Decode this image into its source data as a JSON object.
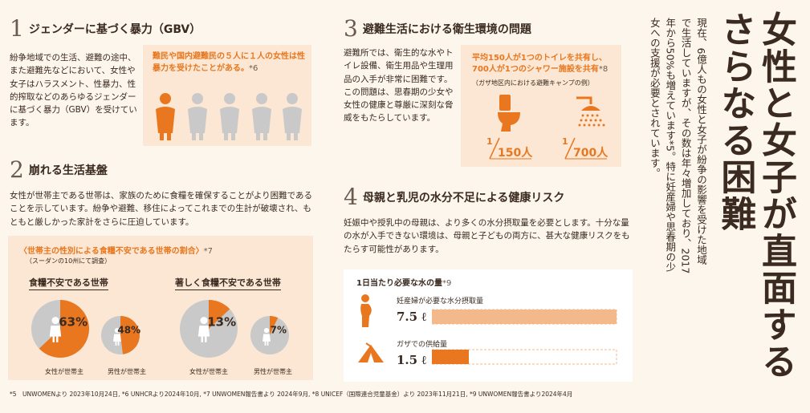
{
  "title_block": {
    "title": "女性と女子が直面するさらなる困難",
    "intro": "現在、6億人もの女性と女子が紛争の影響を受けた地域で生活していますが、その数は年々増加しており、2017年から50%も増えています*5。特に妊産婦や思春期の少女への支援が必要とされています。"
  },
  "s1": {
    "num": "1",
    "heading": "ジェンダーに基づく暴力（GBV）",
    "body": "紛争地域での生活、避難の途中、また避難先などにおいて、女性や女子はハラスメント、性暴力、性的搾取などのあらゆるジェンダーに基づく暴力（GBV）を受けています。",
    "callout": "難民や国内避難民の５人に１人の女性は性暴力を受けたことがある。",
    "callout_ref": "*6"
  },
  "s2": {
    "num": "2",
    "heading": "崩れる生活基盤",
    "body": "女性が世帯主である世帯は、家族のために食糧を確保することがより困難であることを示しています。紛争や避難、移住によってこれまでの生計が破壊され、もともと厳しかった家計をさらに圧迫しています。",
    "chart_title": "〈世帯主の性別による食糧不安である世帯の割合〉",
    "chart_ref": "*7",
    "chart_note": "（スーダンの10州にて調査）",
    "group1": "食糧不安である世帯",
    "group2": "著しく食糧不安である世帯",
    "female_head": "女性が世帯主",
    "male_head": "男性が世帯主"
  },
  "s3": {
    "num": "3",
    "heading": "避難生活における衛生環境の問題",
    "body": "避難所では、衛生的な水やトイレ設備、衛生用品や生理用品の入手が非常に困難です。この問題は、思春期の少女や女性の健康と尊厳に深刻な脅威をもたらしています。",
    "stat": "平均150人が1つのトイレを共有し、700人が1つのシャワー施設を共有",
    "stat_ref": "*8",
    "stat_note": "（ガザ地区内における避難キャンプの例）",
    "toilet_one": "1",
    "toilet_ratio": "150人",
    "shower_one": "1",
    "shower_ratio": "700人"
  },
  "s4": {
    "num": "4",
    "heading": "母親と乳児の水分不足による健康リスク",
    "body": "妊娠中や授乳中の母親は、より多くの水分摂取量を必要とします。十分な量の水が入手できない環境は、母親と子どもの両方に、甚大な健康リスクをもたらす可能性があります。",
    "chart_title": "1日当たり必要な水の量",
    "chart_ref": "*9",
    "row1_label": "妊産婦が必要な水分摂取量",
    "row1_value": "7.5 ℓ",
    "row2_label": "ガザでの供給量",
    "row2_value": "1.5 ℓ"
  },
  "footnote": "*5　UNWOMENより 2023年10月24日, *6 UNHCRより2024年10月, *7 UNWOMEN報告書より 2024年9月, *8 UNICEF（国際連合児童基金）より 2023年11月21日, *9 UNWOMEN報告書より2024年4月",
  "chart_data": [
    {
      "type": "pie",
      "title": "食糧不安である世帯",
      "categories": [
        "女性が世帯主",
        "男性が世帯主"
      ],
      "values": [
        63,
        48
      ],
      "labels": [
        "63%",
        "48%"
      ]
    },
    {
      "type": "pie",
      "title": "著しく食糧不安である世帯",
      "categories": [
        "女性が世帯主",
        "男性が世帯主"
      ],
      "values": [
        13,
        7
      ],
      "labels": [
        "13%",
        "7%"
      ]
    },
    {
      "type": "bar",
      "title": "1日当たり必要な水の量",
      "categories": [
        "妊産婦が必要な水分摂取量",
        "ガザでの供給量"
      ],
      "values": [
        7.5,
        1.5
      ],
      "unit": "ℓ",
      "xlim": [
        0,
        7.5
      ]
    }
  ],
  "colors": {
    "accent": "#e8771f",
    "accent_light": "#f4b98a",
    "panel": "#fbe7d3",
    "pie_grey": "#c9c9c9",
    "bg": "#fdf6ec"
  }
}
